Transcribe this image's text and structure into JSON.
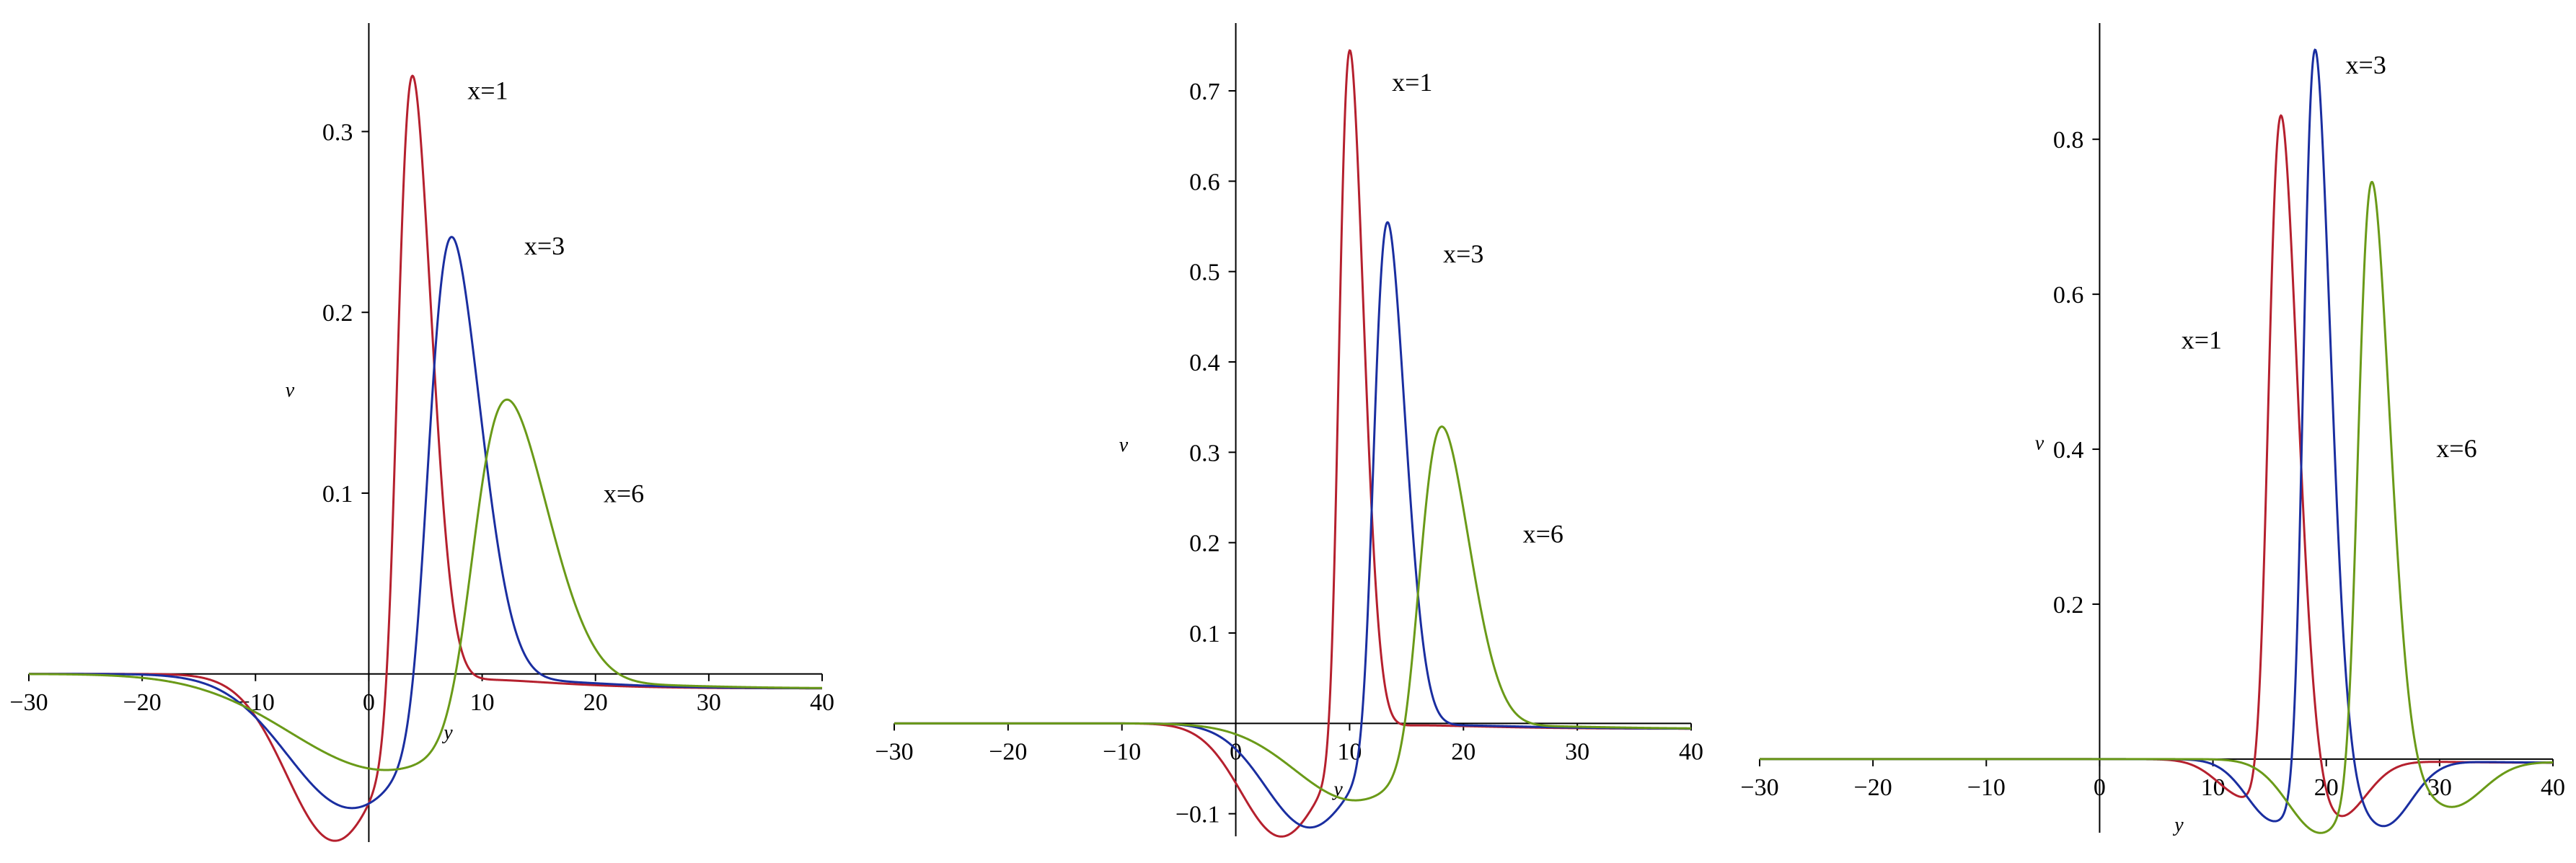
{
  "chart_data": [
    {
      "type": "line",
      "xlabel": "y",
      "ylabel": "v",
      "xlim": [
        -30,
        40
      ],
      "ylim": [
        -0.093,
        0.36
      ],
      "x_ticks": [
        -30,
        -20,
        -10,
        0,
        10,
        20,
        30,
        40
      ],
      "x_tick_labels": [
        "−30",
        "−20",
        "−10",
        "0",
        "10",
        "20",
        "30",
        "40"
      ],
      "y_ticks": [
        0.1,
        0.2,
        0.3
      ],
      "y_tick_labels": [
        "0.1",
        "0.2",
        "0.3"
      ],
      "grid": false,
      "series": [
        {
          "color": "#b5202e",
          "peak_x": 3.8,
          "peak": 0.357,
          "trough_x": -3.0,
          "trough": -0.092,
          "ws": 1.5,
          "wt": 6.0,
          "tail": 0.008
        },
        {
          "color": "#1a2ea0",
          "peak_x": 7.2,
          "peak": 0.265,
          "trough_x": -1.5,
          "trough": -0.074,
          "ws": 2.3,
          "wt": 8.0,
          "tail": 0.008
        },
        {
          "color": "#6a9a18",
          "peak_x": 12.0,
          "peak": 0.177,
          "trough_x": 1.5,
          "trough": -0.053,
          "ws": 3.3,
          "wt": 12.0,
          "tail": 0.008
        }
      ],
      "annotations": [
        {
          "text": "x=1",
          "x": 10.5,
          "y": 0.318
        },
        {
          "text": "x=3",
          "x": 15.5,
          "y": 0.232
        },
        {
          "text": "x=6",
          "x": 22.5,
          "y": 0.095
        }
      ]
    },
    {
      "type": "line",
      "xlabel": "y",
      "ylabel": "v",
      "xlim": [
        -30,
        40
      ],
      "ylim": [
        -0.125,
        0.775
      ],
      "x_ticks": [
        -30,
        -20,
        -10,
        0,
        10,
        20,
        30,
        40
      ],
      "x_tick_labels": [
        "−30",
        "−20",
        "−10",
        "0",
        "10",
        "20",
        "30",
        "40"
      ],
      "y_ticks": [
        -0.1,
        0.1,
        0.2,
        0.3,
        0.4,
        0.5,
        0.6,
        0.7
      ],
      "y_tick_labels": [
        "−0.1",
        "0.1",
        "0.2",
        "0.3",
        "0.4",
        "0.5",
        "0.6",
        "0.7"
      ],
      "grid": false,
      "series": [
        {
          "color": "#b5202e",
          "peak_x": 10.0,
          "peak": 0.775,
          "trough_x": 4.0,
          "trough": -0.125,
          "ws": 1.1,
          "wt": 5.0,
          "tail": 0.006
        },
        {
          "color": "#1a2ea0",
          "peak_x": 13.3,
          "peak": 0.58,
          "trough_x": 6.5,
          "trough": -0.115,
          "ws": 1.4,
          "wt": 5.5,
          "tail": 0.006
        },
        {
          "color": "#6a9a18",
          "peak_x": 18.0,
          "peak": 0.36,
          "trough_x": 10.5,
          "trough": -0.085,
          "ws": 2.2,
          "wt": 7.5,
          "tail": 0.006
        }
      ],
      "annotations": [
        {
          "text": "x=1",
          "x": 15.5,
          "y": 0.7
        },
        {
          "text": "x=3",
          "x": 20.0,
          "y": 0.51
        },
        {
          "text": "x=6",
          "x": 27.0,
          "y": 0.2
        }
      ]
    },
    {
      "type": "line",
      "xlabel": "y",
      "ylabel": "v",
      "xlim": [
        -30,
        40
      ],
      "ylim": [
        -0.095,
        0.95
      ],
      "x_ticks": [
        -30,
        -20,
        -10,
        0,
        10,
        20,
        30,
        40
      ],
      "x_tick_labels": [
        "−30",
        "−20",
        "−10",
        "0",
        "10",
        "20",
        "30",
        "40"
      ],
      "y_ticks": [
        0.2,
        0.4,
        0.6,
        0.8
      ],
      "y_tick_labels": [
        "0.2",
        "0.4",
        "0.6",
        "0.8"
      ],
      "grid": false,
      "series": [
        {
          "color": "#b5202e",
          "peak_x": 16.0,
          "peak": 0.865,
          "trough_x": 13.0,
          "trough": -0.05,
          "trough2_x": 21.0,
          "trough2": -0.075,
          "ws": 1.3,
          "wt": 3.5,
          "tail": 0.005
        },
        {
          "color": "#1a2ea0",
          "peak_x": 19.0,
          "peak": 0.95,
          "trough_x": 15.5,
          "trough": -0.08,
          "trough2_x": 25.0,
          "trough2": -0.085,
          "ws": 1.2,
          "wt": 3.5,
          "tail": 0.005
        },
        {
          "color": "#6a9a18",
          "peak_x": 24.0,
          "peak": 0.775,
          "trough_x": 19.5,
          "trough": -0.095,
          "trough2_x": 31.0,
          "trough2": -0.06,
          "ws": 1.4,
          "wt": 4.0,
          "tail": 0.005
        }
      ],
      "annotations": [
        {
          "text": "x=3",
          "x": 23.5,
          "y": 0.885
        },
        {
          "text": "x=1",
          "x": 9.0,
          "y": 0.53
        },
        {
          "text": "x=6",
          "x": 31.5,
          "y": 0.39
        }
      ]
    }
  ]
}
